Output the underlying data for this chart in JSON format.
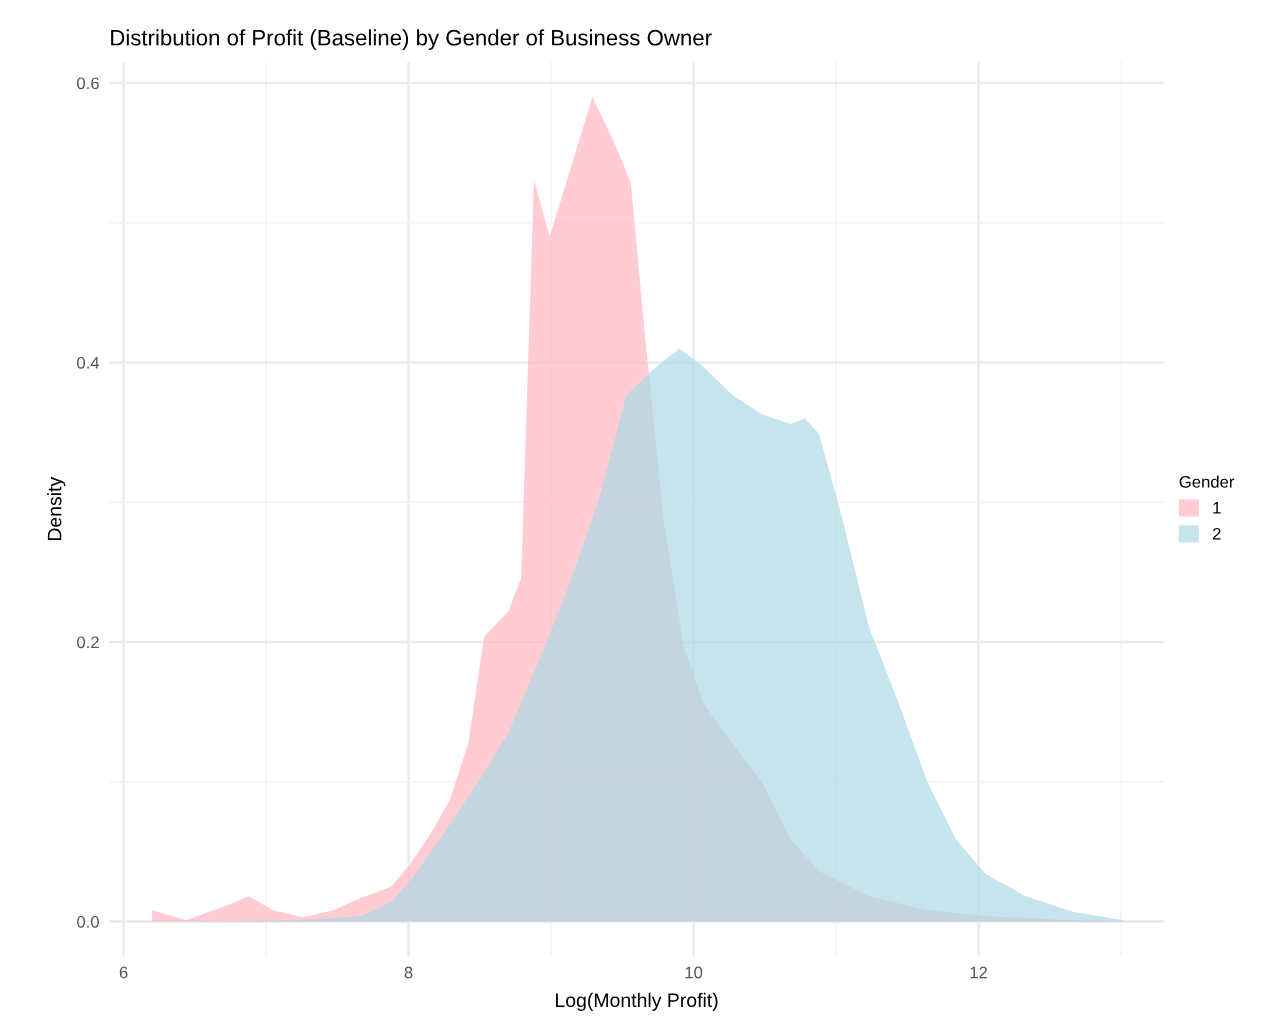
{
  "chart_data": {
    "type": "area",
    "title": "Distribution of Profit (Baseline) by Gender of Business Owner",
    "xlabel": "Log(Monthly Profit)",
    "ylabel": "Density",
    "legend_title": "Gender",
    "legend": "right",
    "grid": true,
    "xlim": [
      5.9,
      13.3
    ],
    "ylim": [
      -0.025,
      0.615
    ],
    "xticks": [
      6,
      8,
      10,
      12
    ],
    "yticks": [
      {
        "value": 0,
        "label": "0.0"
      },
      0.2,
      0.4,
      0.6
    ],
    "series": [
      {
        "name": "1",
        "color": "#ffb6c1",
        "x": [
          6.2,
          6.3,
          6.44,
          6.71,
          6.88,
          7.05,
          7.26,
          7.47,
          7.67,
          7.88,
          8.01,
          8.15,
          8.29,
          8.42,
          8.53,
          8.7,
          8.79,
          8.88,
          8.99,
          9.29,
          9.45,
          9.56,
          9.66,
          9.79,
          9.93,
          10.07,
          10.27,
          10.48,
          10.68,
          10.88,
          11.23,
          11.64,
          12.05,
          12.6,
          13.15
        ],
        "values": [
          0.008,
          0.005,
          0.001,
          0.011,
          0.018,
          0.008,
          0.003,
          0.008,
          0.017,
          0.025,
          0.041,
          0.062,
          0.087,
          0.128,
          0.204,
          0.222,
          0.246,
          0.531,
          0.49,
          0.59,
          0.556,
          0.528,
          0.418,
          0.287,
          0.197,
          0.156,
          0.128,
          0.1,
          0.059,
          0.036,
          0.018,
          0.008,
          0.004,
          0.001,
          0.0
        ]
      },
      {
        "name": "2",
        "color": "#add8e6",
        "x": [
          6.2,
          6.44,
          7.26,
          7.67,
          7.88,
          8.01,
          8.22,
          8.49,
          8.7,
          8.9,
          9.12,
          9.33,
          9.53,
          9.74,
          9.9,
          10.07,
          10.27,
          10.48,
          10.68,
          10.78,
          10.88,
          11.03,
          11.23,
          11.44,
          11.64,
          11.84,
          12.05,
          12.33,
          12.66,
          13.01
        ],
        "values": [
          0.0,
          0.0,
          0.001,
          0.004,
          0.014,
          0.029,
          0.059,
          0.1,
          0.135,
          0.183,
          0.239,
          0.3,
          0.377,
          0.397,
          0.41,
          0.397,
          0.377,
          0.363,
          0.356,
          0.36,
          0.349,
          0.294,
          0.211,
          0.156,
          0.1,
          0.059,
          0.034,
          0.018,
          0.007,
          0.001
        ]
      }
    ]
  }
}
